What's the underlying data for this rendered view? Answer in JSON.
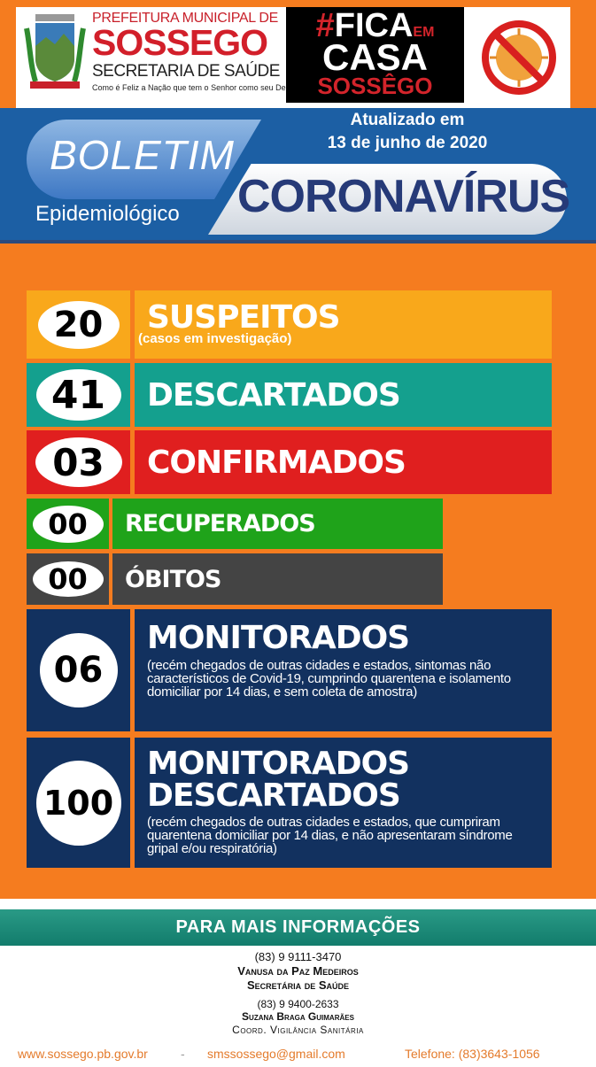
{
  "header": {
    "pref_line1": "PREFEITURA MUNICIPAL DE",
    "pref_name": "SOSSEGO",
    "pref_line3": "SECRETARIA DE SAÚDE",
    "motto": "Como é Feliz a Nação que tem o Senhor como seu Deus",
    "crest_text": "SOSSEGO",
    "campaign": {
      "hash": "#",
      "fica": "FICA",
      "em": "EM",
      "casa": "CASA",
      "city": "SOSSÊGO"
    },
    "icon": "no-virus-icon"
  },
  "banner": {
    "boletim": "BOLETIM",
    "epidemiologico": "Epidemiológico",
    "coronavirus": "CORONAVÍRUS",
    "updated_label": "Atualizado em",
    "updated_date": "13 de junho de 2020"
  },
  "stats": [
    {
      "value": "20",
      "label": "SUSPEITOS",
      "note": "(casos em investigação)",
      "color": "#f9a81b"
    },
    {
      "value": "41",
      "label": "DESCARTADOS",
      "color": "#14a08e"
    },
    {
      "value": "03",
      "label": "CONFIRMADOS",
      "color": "#e01f1f"
    },
    {
      "value": "00",
      "label": "RECUPERADOS",
      "color": "#1fa31a"
    },
    {
      "value": "00",
      "label": "ÓBITOS",
      "color": "#444444"
    },
    {
      "value": "06",
      "label": "MONITORADOS",
      "note": "(recém chegados de outras cidades e estados, sintomas não característicos de Covid-19, cumprindo quarentena e isolamento domiciliar por 14 dias, e sem coleta de amostra)",
      "color": "#12315f"
    },
    {
      "value": "100",
      "label": "MONITORADOS",
      "label2": "DESCARTADOS",
      "note": "(recém chegados de outras cidades e estados, que cumpriram quarentena domiciliar por 14 dias, e não apresentaram síndrome gripal e/ou respiratória)",
      "color": "#12315f"
    }
  ],
  "footer": {
    "title": "PARA MAIS INFORMAÇÕES",
    "contacts": [
      {
        "phone": "(83) 9 9111-3470",
        "name": "Vanusa da Paz Medeiros",
        "role": "Secretária de Saúde"
      },
      {
        "phone": "(83) 9 9400-2633",
        "name": "Suzana Braga Guimarães",
        "role": "Coord. Vigilância Sanitária"
      }
    ],
    "website": "www.sossego.pb.gov.br",
    "separator": "-",
    "email": "smssossego@gmail.com",
    "telephone": "Telefone: (83)3643-1056"
  }
}
